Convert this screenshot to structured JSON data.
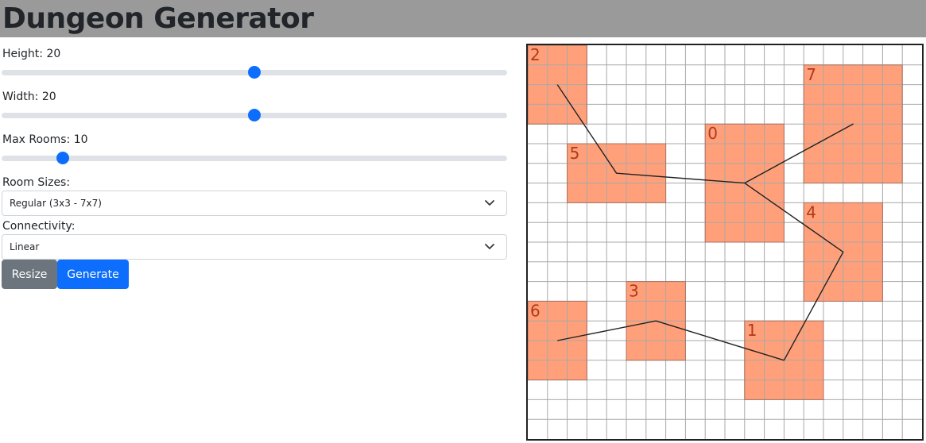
{
  "app": {
    "title": "Dungeon Generator"
  },
  "controls": {
    "height": {
      "label": "Height: 20",
      "value": 20,
      "min": 5,
      "max": 35
    },
    "width": {
      "label": "Width: 20",
      "value": 20,
      "min": 5,
      "max": 35
    },
    "max_rooms": {
      "label": "Max Rooms: 10",
      "value": 10,
      "min": 5,
      "max": 50
    },
    "room_sizes": {
      "label": "Room Sizes:",
      "selected": "Regular (3x3 - 7x7)"
    },
    "connectivity": {
      "label": "Connectivity:",
      "selected": "Linear"
    },
    "resize_label": "Resize",
    "generate_label": "Generate"
  },
  "map": {
    "cols": 20,
    "rows": 20,
    "colors": {
      "room_fill": "#ffa07a",
      "room_stroke": "#b07060",
      "grid": "#a8a8a8",
      "path": "#222222",
      "label": "#b03a1a"
    },
    "rooms": [
      {
        "id": "0",
        "col": 9,
        "row": 4,
        "w": 4,
        "h": 6
      },
      {
        "id": "1",
        "col": 11,
        "row": 14,
        "w": 4,
        "h": 4
      },
      {
        "id": "2",
        "col": 0,
        "row": 0,
        "w": 3,
        "h": 4
      },
      {
        "id": "3",
        "col": 5,
        "row": 12,
        "w": 3,
        "h": 4
      },
      {
        "id": "4",
        "col": 14,
        "row": 8,
        "w": 4,
        "h": 5
      },
      {
        "id": "5",
        "col": 2,
        "row": 5,
        "w": 5,
        "h": 3
      },
      {
        "id": "6",
        "col": 0,
        "row": 13,
        "w": 3,
        "h": 4
      },
      {
        "id": "7",
        "col": 14,
        "row": 1,
        "w": 5,
        "h": 6
      }
    ],
    "path": [
      [
        1.5,
        2
      ],
      [
        4.5,
        6.5
      ],
      [
        11,
        7
      ],
      [
        16.5,
        4
      ],
      [
        11,
        7
      ],
      [
        16,
        10.5
      ],
      [
        13,
        16
      ],
      [
        6.5,
        14
      ],
      [
        1.5,
        15
      ]
    ]
  }
}
